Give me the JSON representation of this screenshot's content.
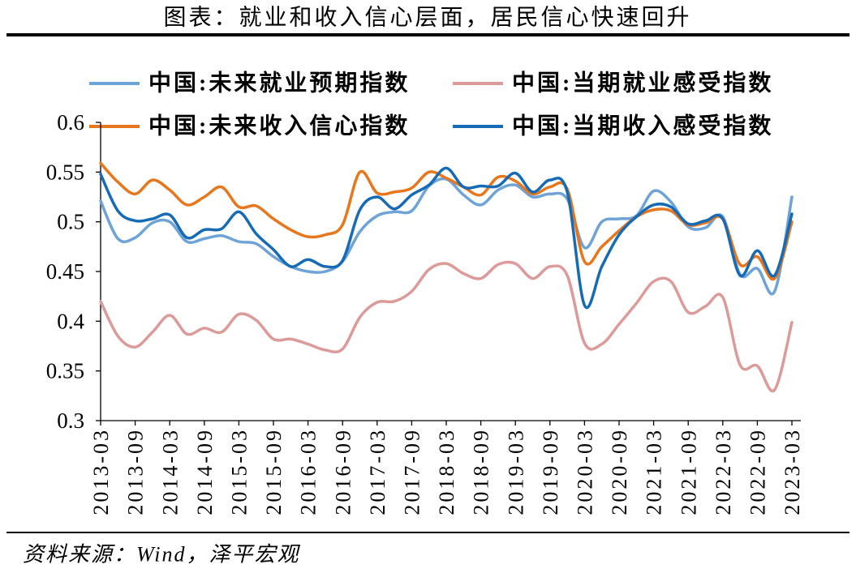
{
  "chart_data": {
    "type": "line",
    "title": "图表：就业和收入信心层面，居民信心快速回升",
    "legend": "top",
    "grid": false,
    "ylim": [
      0.3,
      0.6
    ],
    "yticks": [
      "0.3",
      "0.35",
      "0.4",
      "0.45",
      "0.5",
      "0.55",
      "0.6"
    ],
    "xticks": [
      "2013-03",
      "2013-09",
      "2014-03",
      "2014-09",
      "2015-03",
      "2015-09",
      "2016-03",
      "2016-09",
      "2017-03",
      "2017-09",
      "2018-03",
      "2018-09",
      "2019-03",
      "2019-09",
      "2020-03",
      "2020-09",
      "2021-03",
      "2021-09",
      "2022-03",
      "2022-09",
      "2023-03"
    ],
    "x": [
      "2013-03",
      "2013-06",
      "2013-09",
      "2013-12",
      "2014-03",
      "2014-06",
      "2014-09",
      "2014-12",
      "2015-03",
      "2015-06",
      "2015-09",
      "2015-12",
      "2016-03",
      "2016-06",
      "2016-09",
      "2016-12",
      "2017-03",
      "2017-06",
      "2017-09",
      "2017-12",
      "2018-03",
      "2018-06",
      "2018-09",
      "2018-12",
      "2019-03",
      "2019-06",
      "2019-09",
      "2019-12",
      "2020-03",
      "2020-06",
      "2020-09",
      "2020-12",
      "2021-03",
      "2021-06",
      "2021-09",
      "2021-12",
      "2022-03",
      "2022-06",
      "2022-09",
      "2022-12",
      "2023-03"
    ],
    "series": [
      {
        "name": "中国:未来就业预期指数",
        "color": "#6ea3d8",
        "values": [
          0.521,
          0.483,
          0.484,
          0.499,
          0.5,
          0.48,
          0.483,
          0.486,
          0.48,
          0.478,
          0.465,
          0.455,
          0.45,
          0.45,
          0.46,
          0.49,
          0.506,
          0.51,
          0.511,
          0.536,
          0.543,
          0.527,
          0.517,
          0.532,
          0.537,
          0.525,
          0.528,
          0.523,
          0.474,
          0.5,
          0.503,
          0.506,
          0.531,
          0.52,
          0.495,
          0.494,
          0.505,
          0.447,
          0.453,
          0.43,
          0.525
        ]
      },
      {
        "name": "中国:当期就业感受指数",
        "color": "#dc9a99",
        "values": [
          0.42,
          0.385,
          0.374,
          0.389,
          0.406,
          0.387,
          0.393,
          0.389,
          0.407,
          0.401,
          0.382,
          0.382,
          0.377,
          0.371,
          0.372,
          0.404,
          0.419,
          0.42,
          0.43,
          0.452,
          0.458,
          0.448,
          0.443,
          0.457,
          0.458,
          0.443,
          0.455,
          0.446,
          0.378,
          0.377,
          0.397,
          0.418,
          0.44,
          0.44,
          0.409,
          0.415,
          0.424,
          0.356,
          0.355,
          0.331,
          0.399
        ]
      },
      {
        "name": "中国:未来收入信心指数",
        "color": "#e8761c",
        "values": [
          0.559,
          0.54,
          0.528,
          0.542,
          0.532,
          0.517,
          0.525,
          0.535,
          0.515,
          0.516,
          0.503,
          0.492,
          0.485,
          0.487,
          0.497,
          0.55,
          0.529,
          0.53,
          0.534,
          0.55,
          0.544,
          0.535,
          0.527,
          0.545,
          0.541,
          0.528,
          0.535,
          0.533,
          0.46,
          0.475,
          0.491,
          0.505,
          0.512,
          0.511,
          0.497,
          0.499,
          0.503,
          0.457,
          0.465,
          0.443,
          0.5
        ]
      },
      {
        "name": "中国:当期收入感受指数",
        "color": "#176bb6",
        "values": [
          0.548,
          0.511,
          0.501,
          0.503,
          0.507,
          0.484,
          0.492,
          0.493,
          0.51,
          0.488,
          0.472,
          0.455,
          0.462,
          0.455,
          0.461,
          0.512,
          0.525,
          0.513,
          0.527,
          0.537,
          0.554,
          0.535,
          0.536,
          0.536,
          0.549,
          0.53,
          0.542,
          0.53,
          0.416,
          0.455,
          0.487,
          0.505,
          0.517,
          0.515,
          0.498,
          0.501,
          0.503,
          0.446,
          0.471,
          0.446,
          0.508
        ]
      }
    ]
  },
  "source": "资料来源：Wind，泽平宏观"
}
